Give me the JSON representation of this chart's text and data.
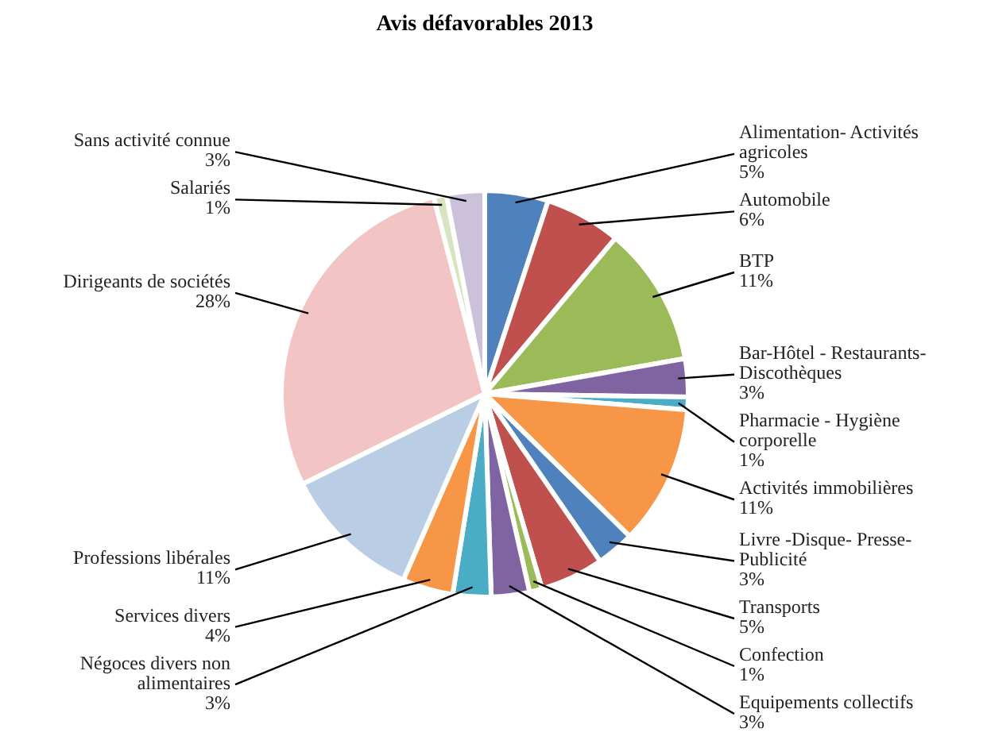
{
  "chart_data": {
    "type": "pie",
    "title": "Avis défavorables 2013",
    "categories": [
      "Alimentation- Activités agricoles",
      "Automobile",
      "BTP",
      "Bar-Hôtel - Restaurants- Discothèques",
      "Pharmacie - Hygiène corporelle",
      "Activités immobilières",
      "Livre -Disque- Presse- Publicité",
      "Transports",
      "Confection",
      "Equipements collectifs",
      "Négoces divers non alimentaires",
      "Services divers",
      "Professions libérales",
      "Dirigeants de sociétés",
      "Salariés",
      "Sans activité connue"
    ],
    "values": [
      5,
      6,
      11,
      3,
      1,
      11,
      3,
      5,
      1,
      3,
      3,
      4,
      11,
      28,
      1,
      3
    ],
    "value_labels": [
      "5%",
      "6%",
      "11%",
      "3%",
      "1%",
      "11%",
      "3%",
      "5%",
      "1%",
      "3%",
      "3%",
      "4%",
      "11%",
      "28%",
      "1%",
      "3%"
    ],
    "colors": [
      "#4f81bd",
      "#c0504d",
      "#9bbb59",
      "#8064a2",
      "#4bacc6",
      "#f79646",
      "#4f81bd",
      "#c0504d",
      "#9bbb59",
      "#8064a2",
      "#4bacc6",
      "#f79646",
      "#b9cde5",
      "#f2c4c4",
      "#d7e4bd",
      "#ccc1da"
    ]
  }
}
